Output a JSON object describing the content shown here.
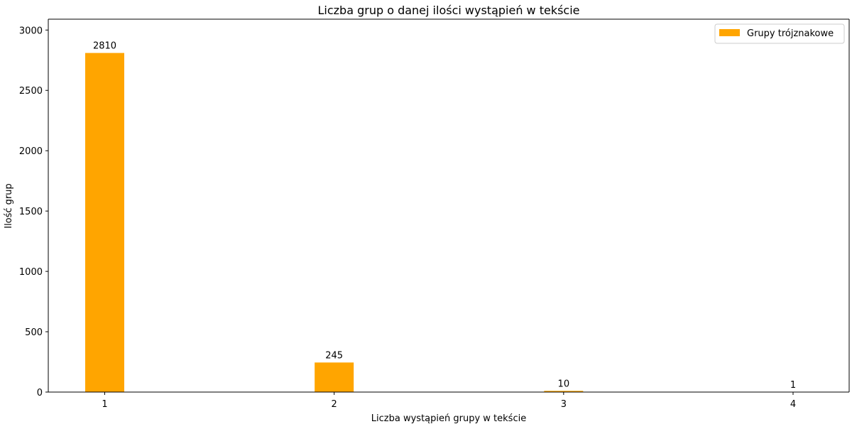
{
  "chart_data": {
    "type": "bar",
    "title": "Liczba grup o danej ilości wystąpień w tekście",
    "xlabel": "Liczba wystąpień grupy w tekście",
    "ylabel": "Ilość grup",
    "categories": [
      "1",
      "2",
      "3",
      "4"
    ],
    "series": [
      {
        "name": "Grupy trójznakowe",
        "values": [
          2810,
          245,
          10,
          1
        ],
        "color": "#ffa500"
      }
    ],
    "data_labels": [
      "2810",
      "245",
      "10",
      "1"
    ],
    "ylim": [
      0,
      3090
    ],
    "yticks": [
      0,
      500,
      1000,
      1500,
      2000,
      2500,
      3000
    ],
    "grid": false,
    "legend_position": "top-right"
  }
}
